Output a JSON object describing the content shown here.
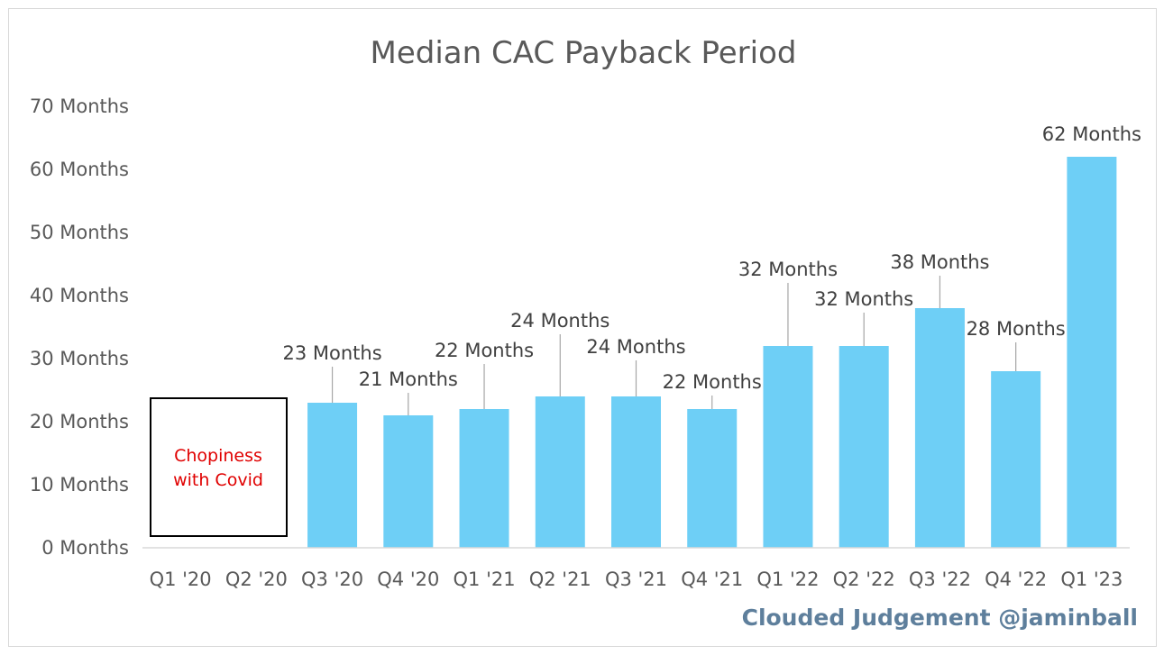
{
  "chart_data": {
    "type": "bar",
    "title": "Median CAC Payback Period",
    "xlabel": "",
    "ylabel": "",
    "ylim": [
      0,
      70
    ],
    "y_ticks": [
      "0 Months",
      "10 Months",
      "20 Months",
      "30 Months",
      "40 Months",
      "50 Months",
      "60 Months",
      "70 Months"
    ],
    "categories": [
      "Q1 '20",
      "Q2 '20",
      "Q3 '20",
      "Q4 '20",
      "Q1 '21",
      "Q2 '21",
      "Q3 '21",
      "Q4 '21",
      "Q1 '22",
      "Q2 '22",
      "Q3 '22",
      "Q4 '22",
      "Q1 '23"
    ],
    "values": [
      null,
      null,
      23,
      21,
      22,
      24,
      24,
      22,
      32,
      32,
      38,
      28,
      62
    ],
    "data_labels": [
      "",
      "",
      "23 Months",
      "21 Months",
      "22 Months",
      "24 Months",
      "24 Months",
      "22 Months",
      "32 Months",
      "32 Months",
      "38 Months",
      "28 Months",
      "62 Months"
    ],
    "bar_color": "#6ecff6",
    "grid": false,
    "legend": "none",
    "annotation": {
      "lines": [
        "Chopiness",
        "with Covid"
      ],
      "color": "#e00000"
    }
  },
  "watermark": "Clouded Judgement @jaminball"
}
